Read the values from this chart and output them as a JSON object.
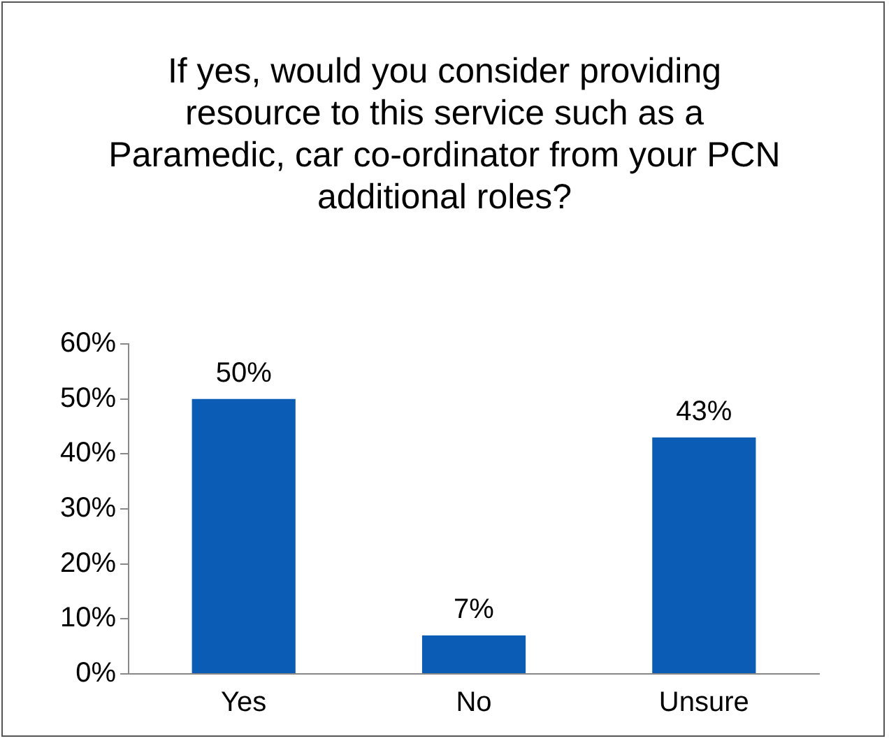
{
  "chart_data": {
    "type": "bar",
    "title": "If yes, would you consider providing resource to this service such as a Paramedic, car co-ordinator from your PCN additional roles?",
    "categories": [
      "Yes",
      "No",
      "Unsure"
    ],
    "values": [
      50,
      7,
      43
    ],
    "value_labels": [
      "50%",
      "7%",
      "43%"
    ],
    "color": "#0b5cb5",
    "ylim": [
      0,
      60
    ],
    "yticks": [
      {
        "value": 0,
        "label": "0%"
      },
      {
        "value": 10,
        "label": "10%"
      },
      {
        "value": 20,
        "label": "20%"
      },
      {
        "value": 30,
        "label": "30%"
      },
      {
        "value": 40,
        "label": "40%"
      },
      {
        "value": 50,
        "label": "50%"
      },
      {
        "value": 60,
        "label": "60%"
      }
    ],
    "grid": false,
    "legend": false
  }
}
